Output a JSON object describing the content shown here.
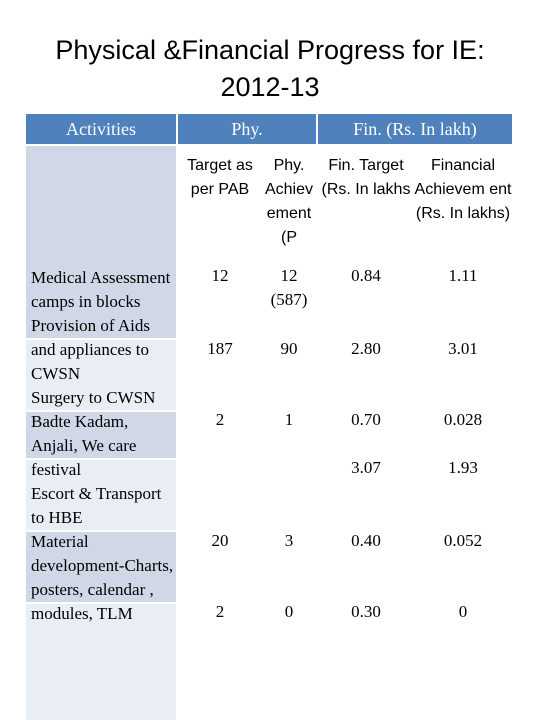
{
  "title": "Physical &Financial Progress for IE: 2012-13",
  "header": {
    "activities": "Activities",
    "phy": "Phy.",
    "fin": "Fin.  (Rs. In lakh)"
  },
  "subheaders": {
    "target": "Target as per PAB",
    "achievement": "Phy. Achiev ement (P",
    "fin_target": "Fin. Target (Rs. In lakhs",
    "fin_achievement": "Financial Achievem ent (Rs. In lakhs)"
  },
  "activities_text": "Medical Assessment camps in  blocks\nProvision of Aids and appliances to CWSN\nSurgery to CWSN\nBadte Kadam, Anjali, We care festival\nEscort & Transport to HBE\nMaterial development-Charts, posters, calendar , modules, TLM",
  "rows": [
    {
      "target": "12",
      "achievement": "12",
      "achievement_note": "(587)",
      "fin_target": "0.84",
      "fin_achievement": "1.11"
    },
    {
      "target": "187",
      "achievement": "90",
      "achievement_note": "",
      "fin_target": "2.80",
      "fin_achievement": "3.01"
    },
    {
      "target": "2",
      "achievement": "1",
      "achievement_note": "",
      "fin_target": "0.70",
      "fin_achievement": "0.028"
    },
    {
      "target": "",
      "achievement": "",
      "achievement_note": "",
      "fin_target": "3.07",
      "fin_achievement": "1.93"
    },
    {
      "target": "20",
      "achievement": "3",
      "achievement_note": "",
      "fin_target": "0.40",
      "fin_achievement": "0.052"
    },
    {
      "target": "2",
      "achievement": "0",
      "achievement_note": "",
      "fin_target": "0.30",
      "fin_achievement": "0"
    }
  ],
  "colors": {
    "header_bg": "#4f81bd",
    "activity_band": "#d0d8e8",
    "activity_band_alt": "#e9edf4"
  }
}
